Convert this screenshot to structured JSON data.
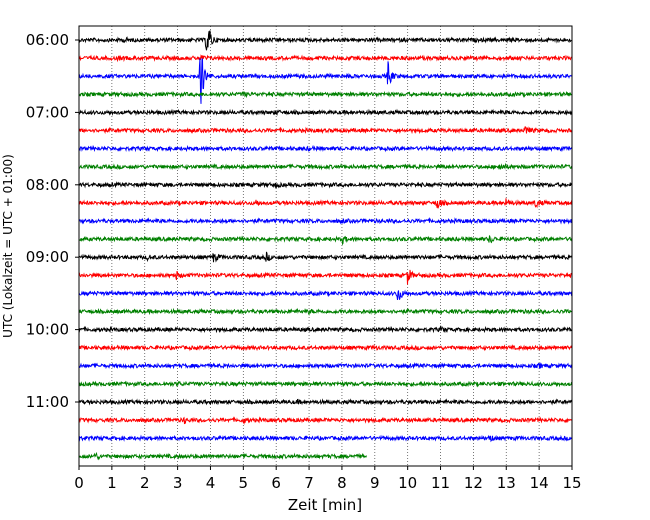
{
  "chart_data": {
    "type": "line",
    "title": "",
    "xlabel": "Zeit  [min]",
    "ylabel": "UTC (Lokalzeit = UTC + 01:00)",
    "xlim": [
      0,
      15
    ],
    "x_ticks": [
      "0",
      "1",
      "2",
      "3",
      "4",
      "5",
      "6",
      "7",
      "8",
      "9",
      "10",
      "11",
      "12",
      "13",
      "14",
      "15"
    ],
    "y_tick_labels": [
      "06:00",
      "07:00",
      "08:00",
      "09:00",
      "10:00",
      "11:00"
    ],
    "grid": "vertical dotted",
    "trace_interval_minutes": 15,
    "trace_count": 24,
    "trace_colors": [
      "#000000",
      "#ff0000",
      "#0000ff",
      "#008000"
    ],
    "series": [
      {
        "start": "06:00",
        "color": "#000000",
        "events": [
          {
            "t": 3.88,
            "amp": 12
          },
          {
            "t": 3.95,
            "amp": 8
          },
          {
            "t": 1.4,
            "amp": 2
          }
        ]
      },
      {
        "start": "06:15",
        "color": "#ff0000",
        "events": [
          {
            "t": 3.7,
            "amp": 3
          },
          {
            "t": 1.2,
            "amp": 1.5
          }
        ]
      },
      {
        "start": "06:30",
        "color": "#0000ff",
        "events": [
          {
            "t": 3.7,
            "amp": 34
          },
          {
            "t": 9.4,
            "amp": 14
          }
        ]
      },
      {
        "start": "06:45",
        "color": "#008000",
        "events": [
          {
            "t": 5.0,
            "amp": 1.5
          }
        ]
      },
      {
        "start": "07:00",
        "color": "#000000",
        "events": [
          {
            "t": 6.0,
            "amp": 1.5
          }
        ]
      },
      {
        "start": "07:15",
        "color": "#ff0000",
        "events": [
          {
            "t": 13.6,
            "amp": 5
          }
        ]
      },
      {
        "start": "07:30",
        "color": "#0000ff",
        "events": [
          {
            "t": 7.0,
            "amp": 1.5
          }
        ]
      },
      {
        "start": "07:45",
        "color": "#008000",
        "events": [
          {
            "t": 12.8,
            "amp": 4
          }
        ]
      },
      {
        "start": "08:00",
        "color": "#000000",
        "events": [
          {
            "t": 6.0,
            "amp": 1.5
          }
        ]
      },
      {
        "start": "08:15",
        "color": "#ff0000",
        "events": [
          {
            "t": 5.4,
            "amp": 3
          },
          {
            "t": 10.9,
            "amp": 7
          },
          {
            "t": 13.0,
            "amp": 4
          },
          {
            "t": 13.9,
            "amp": 5
          }
        ]
      },
      {
        "start": "08:30",
        "color": "#0000ff",
        "events": [
          {
            "t": 8.0,
            "amp": 1.5
          }
        ]
      },
      {
        "start": "08:45",
        "color": "#008000",
        "events": [
          {
            "t": 8.0,
            "amp": 4
          },
          {
            "t": 12.5,
            "amp": 4
          }
        ]
      },
      {
        "start": "09:00",
        "color": "#000000",
        "events": [
          {
            "t": 4.1,
            "amp": 5
          },
          {
            "t": 5.7,
            "amp": 4
          },
          {
            "t": 2.1,
            "amp": 2
          }
        ]
      },
      {
        "start": "09:15",
        "color": "#ff0000",
        "events": [
          {
            "t": 2.95,
            "amp": 4
          },
          {
            "t": 10.0,
            "amp": 9
          }
        ]
      },
      {
        "start": "09:30",
        "color": "#0000ff",
        "events": [
          {
            "t": 9.7,
            "amp": 10
          }
        ]
      },
      {
        "start": "09:45",
        "color": "#008000",
        "events": [
          {
            "t": 7.0,
            "amp": 1.5
          }
        ]
      },
      {
        "start": "10:00",
        "color": "#000000",
        "events": [
          {
            "t": 11.0,
            "amp": 1.5
          }
        ]
      },
      {
        "start": "10:15",
        "color": "#ff0000",
        "events": [
          {
            "t": 9.0,
            "amp": 1.5
          }
        ]
      },
      {
        "start": "10:30",
        "color": "#0000ff",
        "events": [
          {
            "t": 14.0,
            "amp": 1.5
          }
        ]
      },
      {
        "start": "10:45",
        "color": "#008000",
        "events": [
          {
            "t": 3.0,
            "amp": 1.5
          }
        ]
      },
      {
        "start": "11:00",
        "color": "#000000",
        "events": [
          {
            "t": 6.6,
            "amp": 1.5
          }
        ]
      },
      {
        "start": "11:15",
        "color": "#ff0000",
        "events": [
          {
            "t": 3.2,
            "amp": 2.5
          },
          {
            "t": 5.0,
            "amp": 2.5
          }
        ]
      },
      {
        "start": "11:30",
        "color": "#0000ff",
        "events": [
          {
            "t": 12.5,
            "amp": 3
          }
        ]
      },
      {
        "start": "11:45",
        "color": "#008000",
        "end": 8.75,
        "events": [
          {
            "t": 0.5,
            "amp": 3
          }
        ]
      }
    ]
  }
}
